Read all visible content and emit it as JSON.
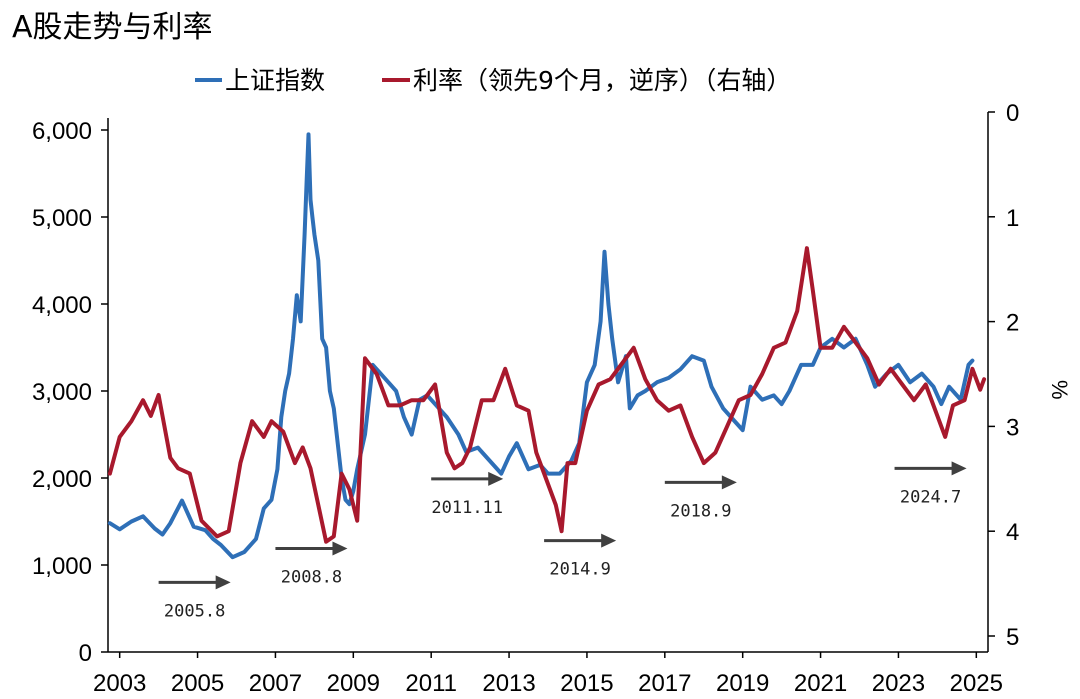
{
  "chart_data": {
    "type": "line",
    "title": "A股走势与利率",
    "legend": [
      "上证指数",
      "利率（领先9个月，逆序）（右轴）"
    ],
    "legend_position": "top",
    "xlabel": "",
    "ylabel_left": "",
    "ylabel_right": "%",
    "x_ticks": [
      "2003",
      "2005",
      "2007",
      "2009",
      "2011",
      "2013",
      "2015",
      "2017",
      "2019",
      "2021",
      "2023",
      "2025"
    ],
    "xlim": [
      2002.7,
      2025.3
    ],
    "y_left_ticks": [
      "0",
      "1,000",
      "2,000",
      "3,000",
      "4,000",
      "5,000",
      "6,000"
    ],
    "y_left_lim": [
      0,
      6000
    ],
    "y_right_ticks": [
      "0",
      "1",
      "2",
      "3",
      "4",
      "5"
    ],
    "y_right_lim": [
      0,
      5
    ],
    "y_right_inverted": true,
    "grid": false,
    "colors": {
      "index": "#2e6fb7",
      "rate": "#a8192d",
      "arrow": "#404040"
    },
    "series": [
      {
        "name": "上证指数",
        "axis": "left",
        "x": [
          2002.75,
          2003.0,
          2003.3,
          2003.6,
          2003.9,
          2004.1,
          2004.3,
          2004.6,
          2004.9,
          2005.2,
          2005.4,
          2005.6,
          2005.9,
          2006.2,
          2006.5,
          2006.7,
          2006.9,
          2007.05,
          2007.15,
          2007.25,
          2007.35,
          2007.45,
          2007.55,
          2007.65,
          2007.75,
          2007.8,
          2007.85,
          2007.9,
          2007.95,
          2008.0,
          2008.1,
          2008.2,
          2008.3,
          2008.4,
          2008.5,
          2008.6,
          2008.7,
          2008.8,
          2008.9,
          2009.0,
          2009.1,
          2009.3,
          2009.5,
          2009.7,
          2009.9,
          2010.1,
          2010.3,
          2010.5,
          2010.7,
          2010.9,
          2011.1,
          2011.4,
          2011.7,
          2011.9,
          2012.2,
          2012.5,
          2012.8,
          2013.0,
          2013.2,
          2013.5,
          2013.8,
          2014.0,
          2014.3,
          2014.6,
          2014.8,
          2015.0,
          2015.2,
          2015.35,
          2015.45,
          2015.55,
          2015.65,
          2015.8,
          2016.0,
          2016.1,
          2016.3,
          2016.5,
          2016.8,
          2017.1,
          2017.4,
          2017.7,
          2018.0,
          2018.2,
          2018.5,
          2018.8,
          2019.0,
          2019.2,
          2019.5,
          2019.8,
          2020.0,
          2020.2,
          2020.5,
          2020.8,
          2021.0,
          2021.3,
          2021.6,
          2021.9,
          2022.2,
          2022.4,
          2022.7,
          2023.0,
          2023.3,
          2023.6,
          2023.9,
          2024.1,
          2024.3,
          2024.6,
          2024.8,
          2024.9
        ],
        "values": [
          1480,
          1410,
          1500,
          1560,
          1420,
          1350,
          1480,
          1740,
          1440,
          1400,
          1300,
          1230,
          1090,
          1150,
          1300,
          1650,
          1750,
          2100,
          2700,
          3000,
          3200,
          3600,
          4100,
          3800,
          4800,
          5400,
          5950,
          5200,
          5000,
          4800,
          4500,
          3600,
          3500,
          3000,
          2800,
          2400,
          2000,
          1750,
          1700,
          1850,
          2100,
          2500,
          3300,
          3200,
          3100,
          3000,
          2700,
          2500,
          2900,
          2950,
          2850,
          2700,
          2500,
          2300,
          2350,
          2200,
          2050,
          2250,
          2400,
          2100,
          2150,
          2050,
          2050,
          2200,
          2400,
          3100,
          3300,
          3800,
          4600,
          4000,
          3600,
          3100,
          3400,
          2800,
          2950,
          3000,
          3100,
          3150,
          3250,
          3400,
          3350,
          3050,
          2800,
          2650,
          2550,
          3050,
          2900,
          2950,
          2850,
          3000,
          3300,
          3300,
          3500,
          3600,
          3500,
          3600,
          3300,
          3050,
          3200,
          3300,
          3100,
          3200,
          3050,
          2850,
          3050,
          2900,
          3300,
          3350
        ]
      },
      {
        "name": "利率（领先9个月，逆序）（右轴）",
        "axis": "right",
        "x": [
          2002.75,
          2003.0,
          2003.3,
          2003.6,
          2003.8,
          2004.0,
          2004.3,
          2004.5,
          2004.8,
          2005.1,
          2005.5,
          2005.8,
          2006.1,
          2006.4,
          2006.7,
          2006.9,
          2007.2,
          2007.5,
          2007.7,
          2007.9,
          2008.1,
          2008.3,
          2008.5,
          2008.7,
          2008.9,
          2009.1,
          2009.3,
          2009.6,
          2009.9,
          2010.2,
          2010.5,
          2010.8,
          2011.1,
          2011.4,
          2011.6,
          2011.8,
          2012.0,
          2012.3,
          2012.6,
          2012.9,
          2013.2,
          2013.5,
          2013.7,
          2014.0,
          2014.2,
          2014.35,
          2014.5,
          2014.7,
          2015.0,
          2015.3,
          2015.6,
          2015.9,
          2016.2,
          2016.5,
          2016.8,
          2017.1,
          2017.4,
          2017.7,
          2018.0,
          2018.3,
          2018.6,
          2018.9,
          2019.2,
          2019.5,
          2019.8,
          2020.1,
          2020.4,
          2020.65,
          2020.8,
          2021.0,
          2021.3,
          2021.6,
          2021.9,
          2022.2,
          2022.5,
          2022.8,
          2023.1,
          2023.4,
          2023.7,
          2024.0,
          2024.2,
          2024.4,
          2024.7,
          2024.9,
          2025.1,
          2025.2
        ],
        "values": [
          3.45,
          3.1,
          2.95,
          2.75,
          2.9,
          2.7,
          3.3,
          3.4,
          3.45,
          3.9,
          4.05,
          4.0,
          3.35,
          2.95,
          3.1,
          2.95,
          3.05,
          3.35,
          3.2,
          3.4,
          3.75,
          4.1,
          4.05,
          3.45,
          3.6,
          3.9,
          2.35,
          2.5,
          2.8,
          2.8,
          2.75,
          2.75,
          2.6,
          3.25,
          3.4,
          3.35,
          3.2,
          2.75,
          2.75,
          2.45,
          2.8,
          2.85,
          3.25,
          3.55,
          3.75,
          4.0,
          3.35,
          3.35,
          2.85,
          2.6,
          2.55,
          2.4,
          2.25,
          2.55,
          2.75,
          2.85,
          2.8,
          3.1,
          3.35,
          3.25,
          3.0,
          2.75,
          2.7,
          2.5,
          2.25,
          2.2,
          1.9,
          1.3,
          1.7,
          2.25,
          2.25,
          2.05,
          2.2,
          2.35,
          2.6,
          2.45,
          2.6,
          2.75,
          2.6,
          2.9,
          3.1,
          2.8,
          2.75,
          2.45,
          2.65,
          2.55
        ]
      }
    ],
    "annotations": [
      {
        "text": "2005.8",
        "x_start": 2004.0,
        "x_end": 2005.85,
        "y": 800
      },
      {
        "text": "2008.8",
        "x_start": 2007.0,
        "x_end": 2008.85,
        "y": 1190
      },
      {
        "text": "2011.11",
        "x_start": 2011.0,
        "x_end": 2012.85,
        "y": 1990
      },
      {
        "text": "2014.9",
        "x_start": 2013.9,
        "x_end": 2015.75,
        "y": 1280
      },
      {
        "text": "2018.9",
        "x_start": 2017.0,
        "x_end": 2018.85,
        "y": 1950
      },
      {
        "text": "2024.7",
        "x_start": 2022.9,
        "x_end": 2024.75,
        "y": 2110
      }
    ]
  }
}
